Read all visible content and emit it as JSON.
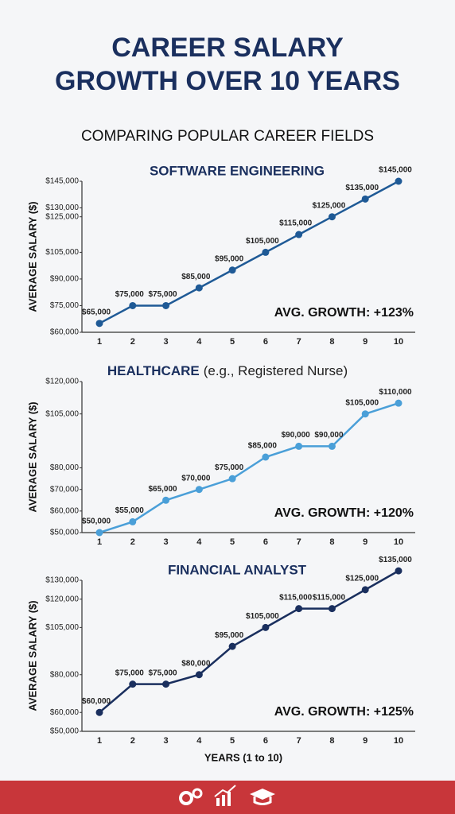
{
  "header": {
    "title_lines": [
      "CAREER SALARY",
      "GROWTH OVER 10 YEARS"
    ],
    "subtitle": "COMPARING POPULAR CAREER FIELDS"
  },
  "chart_data": [
    {
      "type": "line",
      "title": "SOFTWARE ENGINEERING",
      "y_label": "AVERAGE SALARY ($)",
      "annotation": "AVG. GROWTH: +123%",
      "categories": [
        "1",
        "2",
        "3",
        "4",
        "5",
        "6",
        "7",
        "8",
        "9",
        "10"
      ],
      "series": [
        {
          "name": "Software Engineering",
          "color": "#1f5a96",
          "values": [
            65000,
            75000,
            75000,
            85000,
            95000,
            105000,
            115000,
            125000,
            135000,
            145000
          ],
          "value_labels": [
            "$65,000",
            "$75,000",
            "$75,000",
            "$85,000",
            "$95,000",
            "$105,000",
            "$115,000",
            "$125,000",
            "$135,000",
            "$145,000"
          ]
        }
      ],
      "ylim": [
        60000,
        145000
      ],
      "yticks": [
        {
          "value": 60000,
          "label": "$60,000"
        },
        {
          "value": 75000,
          "label": "$75,000"
        },
        {
          "value": 90000,
          "label": "$90,000"
        },
        {
          "value": 105000,
          "label": "$105,000"
        },
        {
          "value": 125000,
          "label": "$125,000"
        },
        {
          "value": 130000,
          "label": "$130,000"
        },
        {
          "value": 145000,
          "label": "$145,000"
        }
      ],
      "grid": false
    },
    {
      "type": "line",
      "title": "HEALTHCARE",
      "title_note": "(e.g., Registered Nurse)",
      "y_label": "AVERAGE SALARY ($)",
      "annotation": "AVG. GROWTH: +120%",
      "categories": [
        "1",
        "2",
        "3",
        "4",
        "5",
        "6",
        "7",
        "8",
        "9",
        "10"
      ],
      "series": [
        {
          "name": "Healthcare",
          "color": "#4a9fd8",
          "values": [
            50000,
            55000,
            65000,
            70000,
            75000,
            85000,
            90000,
            90000,
            105000,
            110000
          ],
          "value_labels": [
            "$50,000",
            "$55,000",
            "$65,000",
            "$70,000",
            "$75,000",
            "$85,000",
            "$90,000",
            "$90,000",
            "$105,000",
            "$110,000"
          ]
        }
      ],
      "ylim": [
        50000,
        120000
      ],
      "yticks": [
        {
          "value": 50000,
          "label": "$50,000"
        },
        {
          "value": 60000,
          "label": "$60,000"
        },
        {
          "value": 70000,
          "label": "$70,000"
        },
        {
          "value": 80000,
          "label": "$80,000"
        },
        {
          "value": 105000,
          "label": "$105,000"
        },
        {
          "value": 120000,
          "label": "$120,000"
        }
      ],
      "grid": false
    },
    {
      "type": "line",
      "title": "FINANCIAL ANALYST",
      "y_label": "AVERAGE SALARY ($)",
      "x_label": "YEARS (1 to 10)",
      "annotation": "AVG. GROWTH: +125%",
      "categories": [
        "1",
        "2",
        "3",
        "4",
        "5",
        "6",
        "7",
        "8",
        "9",
        "10"
      ],
      "series": [
        {
          "name": "Financial Analyst",
          "color": "#1a2f5e",
          "values": [
            60000,
            75000,
            75000,
            80000,
            95000,
            105000,
            115000,
            115000,
            125000,
            135000
          ],
          "value_labels": [
            "$60,000",
            "$75,000",
            "$75,000",
            "$80,000",
            "$95,000",
            "$105,000",
            "$115,000",
            "$115,000",
            "$125,000",
            "$135,000"
          ]
        }
      ],
      "ylim": [
        50000,
        130000
      ],
      "yticks": [
        {
          "value": 50000,
          "label": "$50,000"
        },
        {
          "value": 60000,
          "label": "$60,000"
        },
        {
          "value": 80000,
          "label": "$80,000"
        },
        {
          "value": 105000,
          "label": "$105,000"
        },
        {
          "value": 120000,
          "label": "$120,000"
        },
        {
          "value": 130000,
          "label": "$130,000"
        }
      ],
      "grid": false
    }
  ]
}
